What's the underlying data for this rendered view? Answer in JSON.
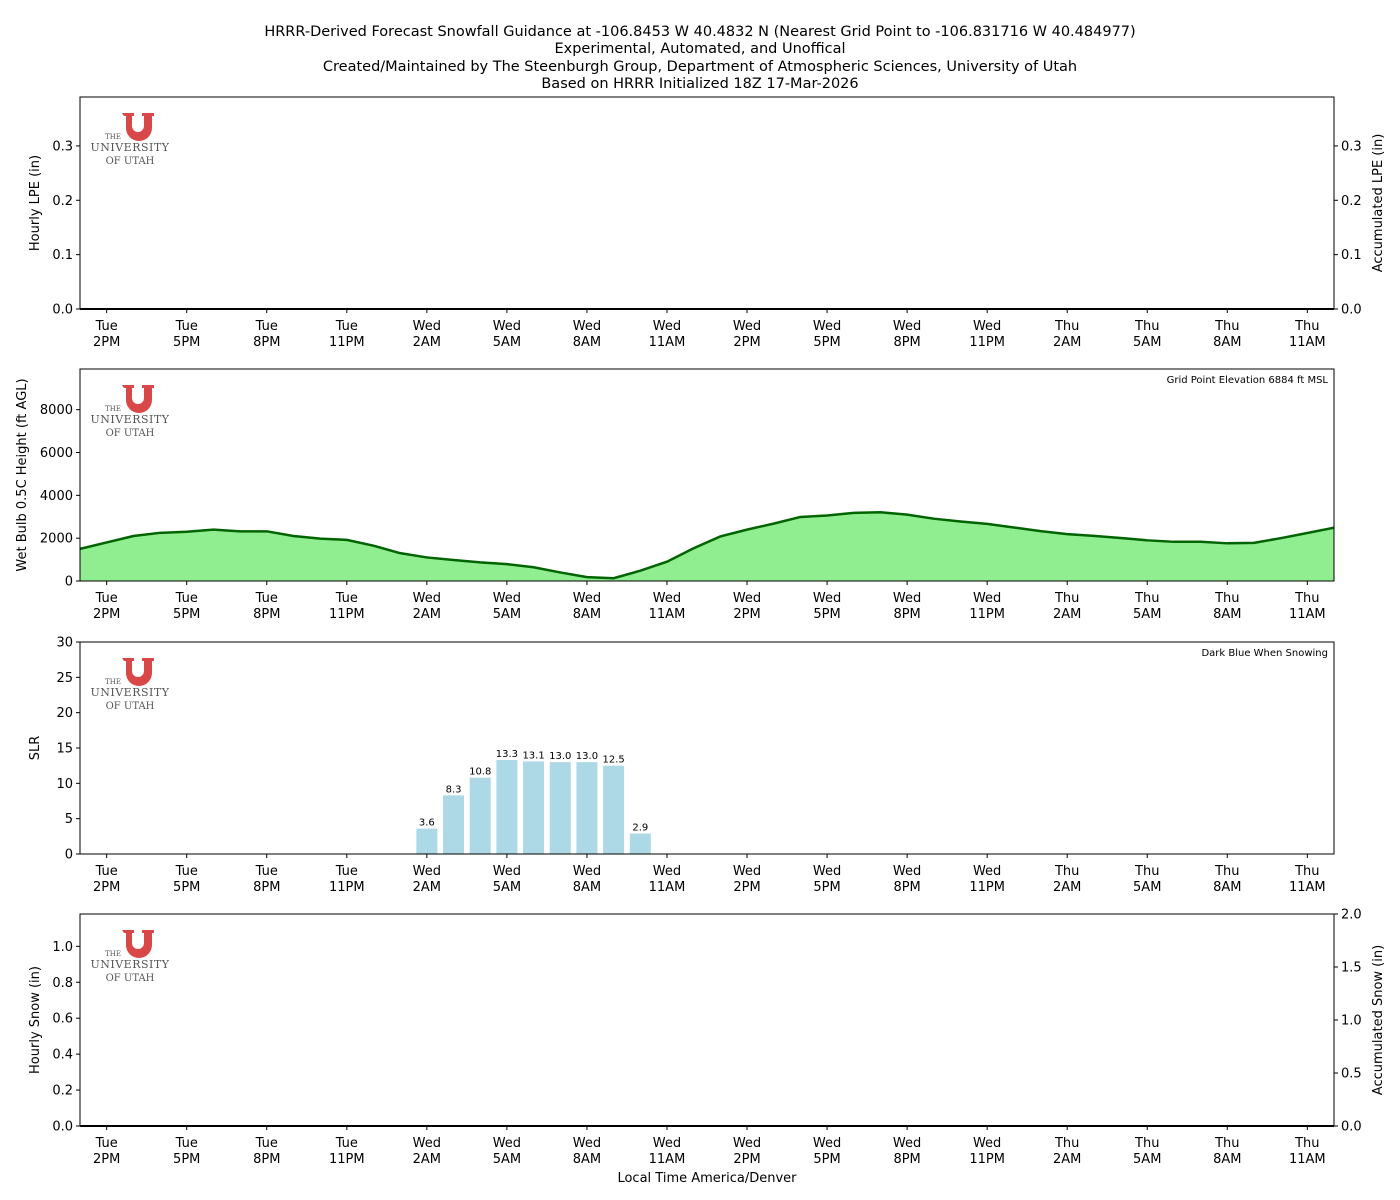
{
  "title": [
    "HRRR-Derived Forecast Snowfall Guidance at -106.8453 W 40.4832 N (Nearest Grid Point to -106.831716 W 40.484977)",
    "Experimental, Automated, and Unoffical",
    "Created/Maintained by The Steenburgh Group, Department of Atmospheric Sciences, University of Utah",
    "Based on HRRR Initialized 18Z 17-Mar-2026"
  ],
  "logo": {
    "lines": [
      "THE",
      "UNIVERSITY",
      "OF UTAH"
    ],
    "color": "#d94848"
  },
  "xlabel": "Local Time America/Denver",
  "x_ticks": [
    [
      "Tue",
      "2PM"
    ],
    [
      "Tue",
      "5PM"
    ],
    [
      "Tue",
      "8PM"
    ],
    [
      "Tue",
      "11PM"
    ],
    [
      "Wed",
      "2AM"
    ],
    [
      "Wed",
      "5AM"
    ],
    [
      "Wed",
      "8AM"
    ],
    [
      "Wed",
      "11AM"
    ],
    [
      "Wed",
      "2PM"
    ],
    [
      "Wed",
      "5PM"
    ],
    [
      "Wed",
      "8PM"
    ],
    [
      "Wed",
      "11PM"
    ],
    [
      "Thu",
      "2AM"
    ],
    [
      "Thu",
      "5AM"
    ],
    [
      "Thu",
      "8AM"
    ],
    [
      "Thu",
      "11AM"
    ]
  ],
  "chart_data": [
    {
      "type": "line",
      "ylabel": "Hourly LPE (in)",
      "ylabel_right": "Accumulated LPE (in)",
      "ylim": [
        0,
        0.39
      ],
      "yticks": [
        0.0,
        0.1,
        0.2,
        0.3
      ],
      "ytick_labels": [
        "0.0",
        "0.1",
        "0.2",
        "0.3"
      ],
      "ylim_right": [
        0,
        0.39
      ],
      "yticks_right": [
        0.0,
        0.1,
        0.2,
        0.3
      ],
      "ytick_labels_right": [
        "0.0",
        "0.1",
        "0.2",
        "0.3"
      ],
      "x_range_hours": "Tue 1PM to Thu 12PM, hourly",
      "values": [
        0,
        0,
        0,
        0,
        0,
        0,
        0,
        0,
        0,
        0,
        0,
        0,
        0,
        0,
        0,
        0,
        0,
        0,
        0,
        0,
        0,
        0,
        0,
        0,
        0,
        0,
        0,
        0,
        0,
        0,
        0,
        0,
        0,
        0,
        0,
        0,
        0,
        0,
        0,
        0,
        0,
        0,
        0,
        0,
        0,
        0,
        0,
        0
      ]
    },
    {
      "type": "area",
      "ylabel": "Wet Bulb 0.5C Height (ft AGL)",
      "annotation": "Grid Point Elevation 6884 ft MSL",
      "ylim": [
        0,
        9900
      ],
      "yticks": [
        0,
        2000,
        4000,
        6000,
        8000
      ],
      "ytick_labels": [
        "0",
        "2000",
        "4000",
        "6000",
        "8000"
      ],
      "fill_color": "#90ee90",
      "line_color": "#006400",
      "values": [
        1500,
        1800,
        2100,
        2250,
        2300,
        2400,
        2320,
        2320,
        2100,
        1980,
        1920,
        1650,
        1300,
        1100,
        980,
        870,
        790,
        640,
        400,
        180,
        130,
        480,
        900,
        1530,
        2080,
        2400,
        2680,
        2990,
        3060,
        3180,
        3210,
        3100,
        2910,
        2780,
        2670,
        2500,
        2330,
        2190,
        2110,
        2010,
        1900,
        1830,
        1830,
        1760,
        1780,
        2000,
        2240,
        2490
      ]
    },
    {
      "type": "bar",
      "ylabel": "SLR",
      "annotation": "Dark Blue When Snowing",
      "ylim": [
        0,
        30
      ],
      "yticks": [
        0,
        5,
        10,
        15,
        20,
        25,
        30
      ],
      "ytick_labels": [
        "0",
        "5",
        "10",
        "15",
        "20",
        "25",
        "30"
      ],
      "bar_color": "#add8e6",
      "bars": [
        {
          "time": "Wed 2AM",
          "value": 3.6,
          "label": "3.6"
        },
        {
          "time": "Wed 3AM",
          "value": 8.3,
          "label": "8.3"
        },
        {
          "time": "Wed 4AM",
          "value": 10.8,
          "label": "10.8"
        },
        {
          "time": "Wed 5AM",
          "value": 13.3,
          "label": "13.3"
        },
        {
          "time": "Wed 6AM",
          "value": 13.1,
          "label": "13.1"
        },
        {
          "time": "Wed 7AM",
          "value": 13.0,
          "label": "13.0"
        },
        {
          "time": "Wed 8AM",
          "value": 13.0,
          "label": "13.0"
        },
        {
          "time": "Wed 9AM",
          "value": 12.5,
          "label": "12.5"
        },
        {
          "time": "Wed 10AM",
          "value": 2.9,
          "label": "2.9"
        }
      ]
    },
    {
      "type": "line",
      "ylabel": "Hourly Snow (in)",
      "ylabel_right": "Accumulated Snow (in)",
      "ylim": [
        0,
        1.18
      ],
      "yticks": [
        0,
        0.2,
        0.4,
        0.6,
        0.8,
        1.0
      ],
      "ytick_labels": [
        "0.0",
        "0.2",
        "0.4",
        "0.6",
        "0.8",
        "1.0"
      ],
      "ylim_right": [
        0,
        2.0
      ],
      "yticks_right": [
        0,
        0.5,
        1.0,
        1.5,
        2.0
      ],
      "ytick_labels_right": [
        "0.0",
        "0.5",
        "1.0",
        "1.5",
        "2.0"
      ],
      "values": [
        0,
        0,
        0,
        0,
        0,
        0,
        0,
        0,
        0,
        0,
        0,
        0,
        0,
        0,
        0,
        0,
        0,
        0,
        0,
        0,
        0,
        0,
        0,
        0,
        0,
        0,
        0,
        0,
        0,
        0,
        0,
        0,
        0,
        0,
        0,
        0,
        0,
        0,
        0,
        0,
        0,
        0,
        0,
        0,
        0,
        0,
        0,
        0
      ]
    }
  ]
}
